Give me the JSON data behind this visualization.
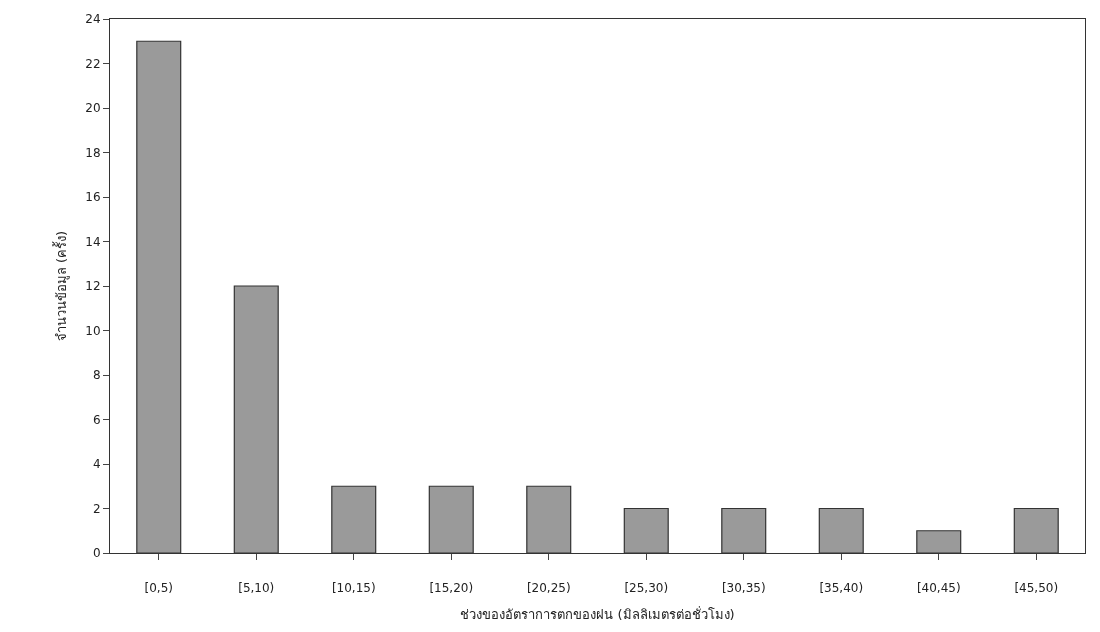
{
  "chart_data": {
    "type": "bar",
    "xlabel": "ช่วงของอัตราการตกของฝน (มิลลิเมตรต่อชั่วโมง)",
    "ylabel": "จำนวนข้อมูล (ครั้ง)",
    "categories": [
      "[0,5)",
      "[5,10)",
      "[10,15)",
      "[15,20)",
      "[20,25)",
      "[25,30)",
      "[30,35)",
      "[35,40)",
      "[40,45)",
      "[45,50)"
    ],
    "values": [
      23,
      12,
      3,
      3,
      3,
      2,
      2,
      2,
      1,
      2
    ],
    "color": "#9a9a9a",
    "ylim": [
      0,
      24
    ],
    "yticks": [
      0,
      2,
      4,
      6,
      8,
      10,
      12,
      14,
      16,
      18,
      20,
      22,
      24
    ]
  }
}
